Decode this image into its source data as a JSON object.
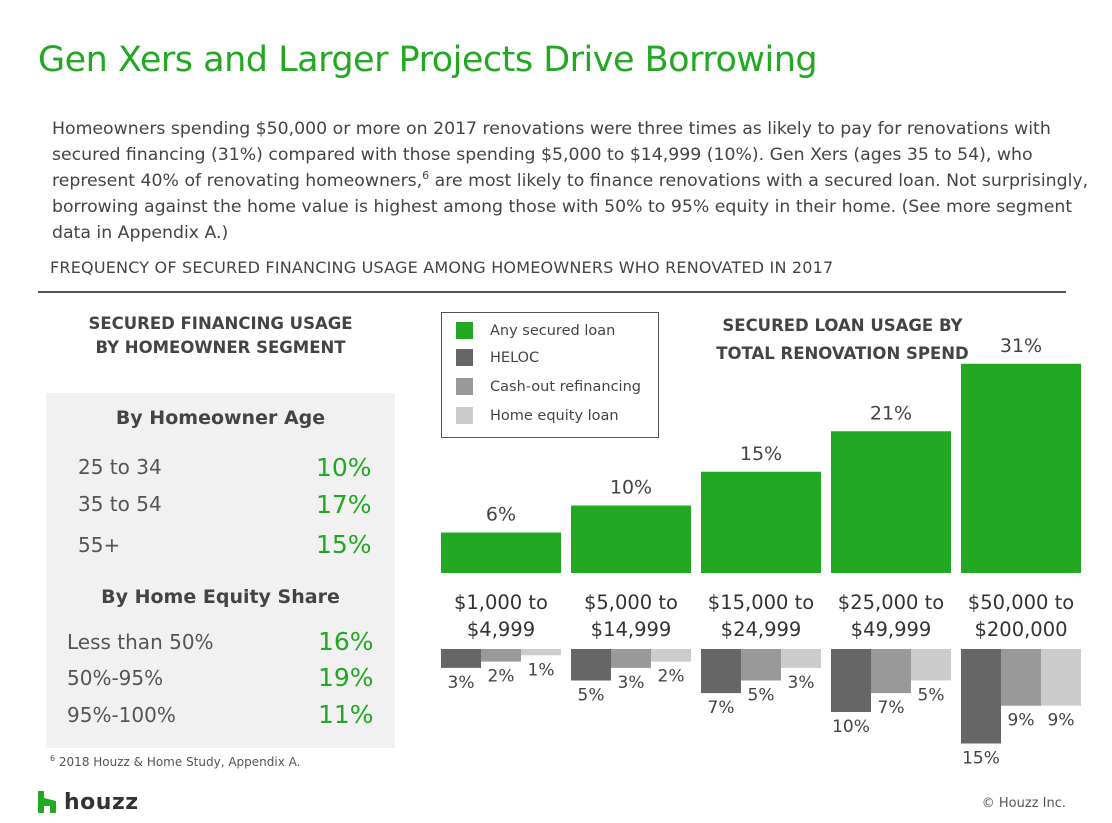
{
  "title": "Gen Xers and Larger Projects Drive Borrowing",
  "body": {
    "text_before_sup": "Homeowners spending $50,000 or more on 2017 renovations were three times as likely to pay for renovations with secured financing (31%) compared with those spending $5,000 to $14,999 (10%). Gen Xers (ages 35 to 54), who represent 40% of renovating homeowners,",
    "sup": "6",
    "text_after_sup": " are most likely to finance renovations with a secured loan. Not surprisingly, borrowing against the home value is highest among those with 50% to 95% equity in their home. (See more segment data in Appendix A.)"
  },
  "section_title": "FREQUENCY OF SECURED FINANCING USAGE AMONG HOMEOWNERS WHO RENOVATED IN 2017",
  "left_panel": {
    "heading_line1": "SECURED FINANCING USAGE",
    "heading_line2": "BY HOMEOWNER SEGMENT",
    "groups": [
      {
        "title": "By Homeowner Age",
        "rows": [
          {
            "label": "25 to 34",
            "value": "10%"
          },
          {
            "label": "35 to 54",
            "value": "17%"
          },
          {
            "label": "55+",
            "value": "15%"
          }
        ]
      },
      {
        "title": "By Home Equity Share",
        "rows": [
          {
            "label": "Less than 50%",
            "value": "16%"
          },
          {
            "label": "50%-95%",
            "value": "19%"
          },
          {
            "label": "95%-100%",
            "value": "11%"
          }
        ]
      }
    ]
  },
  "footnote": {
    "sup": "6",
    "text": " 2018 Houzz & Home Study, Appendix A."
  },
  "logo_text": "houzz",
  "copyright": "© Houzz Inc.",
  "colors": {
    "green": "#22a822",
    "heloc": "#666666",
    "cashout": "#999999",
    "home_equity": "#cccccc"
  },
  "chart_data": {
    "type": "bar",
    "title_line1": "SECURED LOAN USAGE BY",
    "title_line2": "TOTAL RENOVATION SPEND",
    "categories": [
      [
        "$1,000 to",
        "$4,999"
      ],
      [
        "$5,000 to",
        "$14,999"
      ],
      [
        "$15,000 to",
        "$24,999"
      ],
      [
        "$25,000 to",
        "$49,999"
      ],
      [
        "$50,000 to",
        "$200,000"
      ]
    ],
    "legend": [
      "Any secured loan",
      "HELOC",
      "Cash-out refinancing",
      "Home equity loan"
    ],
    "series": [
      {
        "name": "Any secured loan",
        "values": [
          6,
          10,
          15,
          21,
          31
        ]
      },
      {
        "name": "HELOC",
        "values": [
          3,
          5,
          7,
          10,
          15
        ]
      },
      {
        "name": "Cash-out refinancing",
        "values": [
          2,
          3,
          5,
          7,
          9
        ]
      },
      {
        "name": "Home equity loan",
        "values": [
          1,
          2,
          3,
          5,
          9
        ]
      }
    ],
    "value_suffix": "%"
  }
}
